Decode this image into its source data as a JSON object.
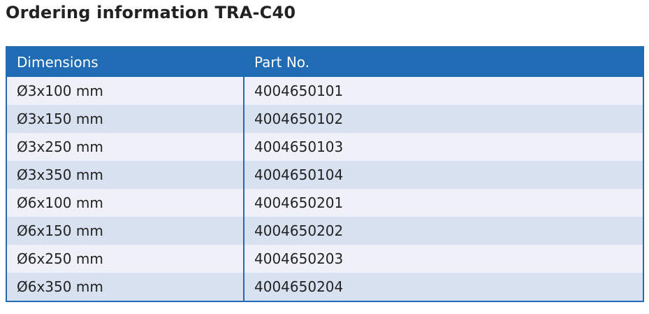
{
  "header": {
    "title": "Ordering information TRA-C40"
  },
  "table": {
    "columns": [
      "Dimensions",
      "Part No."
    ],
    "rows": [
      [
        "Ø3x100 mm",
        "4004650101"
      ],
      [
        "Ø3x150 mm",
        "4004650102"
      ],
      [
        "Ø3x250 mm",
        "4004650103"
      ],
      [
        "Ø3x350 mm",
        "4004650104"
      ],
      [
        "Ø6x100 mm",
        "4004650201"
      ],
      [
        "Ø6x150 mm",
        "4004650202"
      ],
      [
        "Ø6x250 mm",
        "4004650203"
      ],
      [
        "Ø6x350 mm",
        "4004650204"
      ]
    ]
  }
}
